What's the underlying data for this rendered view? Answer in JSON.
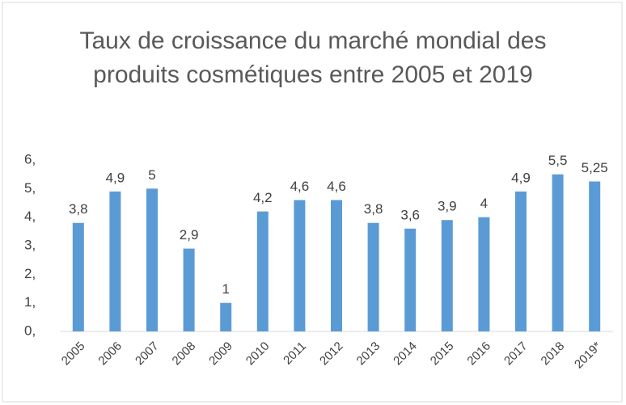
{
  "chart_data": {
    "type": "bar",
    "title": "Taux de croissance du marché mondial des produits cosmétiques entre 2005 et 2019",
    "categories": [
      "2005",
      "2006",
      "2007",
      "2008",
      "2009",
      "2010",
      "2011",
      "2012",
      "2013",
      "2014",
      "2015",
      "2016",
      "2017",
      "2018",
      "2019*"
    ],
    "values": [
      3.8,
      4.9,
      5,
      2.9,
      1,
      4.2,
      4.6,
      4.6,
      3.8,
      3.6,
      3.9,
      4,
      4.9,
      5.5,
      5.25
    ],
    "value_labels": [
      "3,8",
      "4,9",
      "5",
      "2,9",
      "1",
      "4,2",
      "4,6",
      "4,6",
      "3,8",
      "3,6",
      "3,9",
      "4",
      "4,9",
      "5,5",
      "5,25"
    ],
    "color": "#5b9bd5",
    "ylim": [
      0,
      6
    ],
    "yticks": [
      {
        "value": 0,
        "label": "0,"
      },
      {
        "value": 1,
        "label": "1,"
      },
      {
        "value": 2,
        "label": "2,"
      },
      {
        "value": 3,
        "label": "3,"
      },
      {
        "value": 4,
        "label": "4,"
      },
      {
        "value": 5,
        "label": "5,"
      },
      {
        "value": 6,
        "label": "6,"
      }
    ],
    "grid": false
  }
}
